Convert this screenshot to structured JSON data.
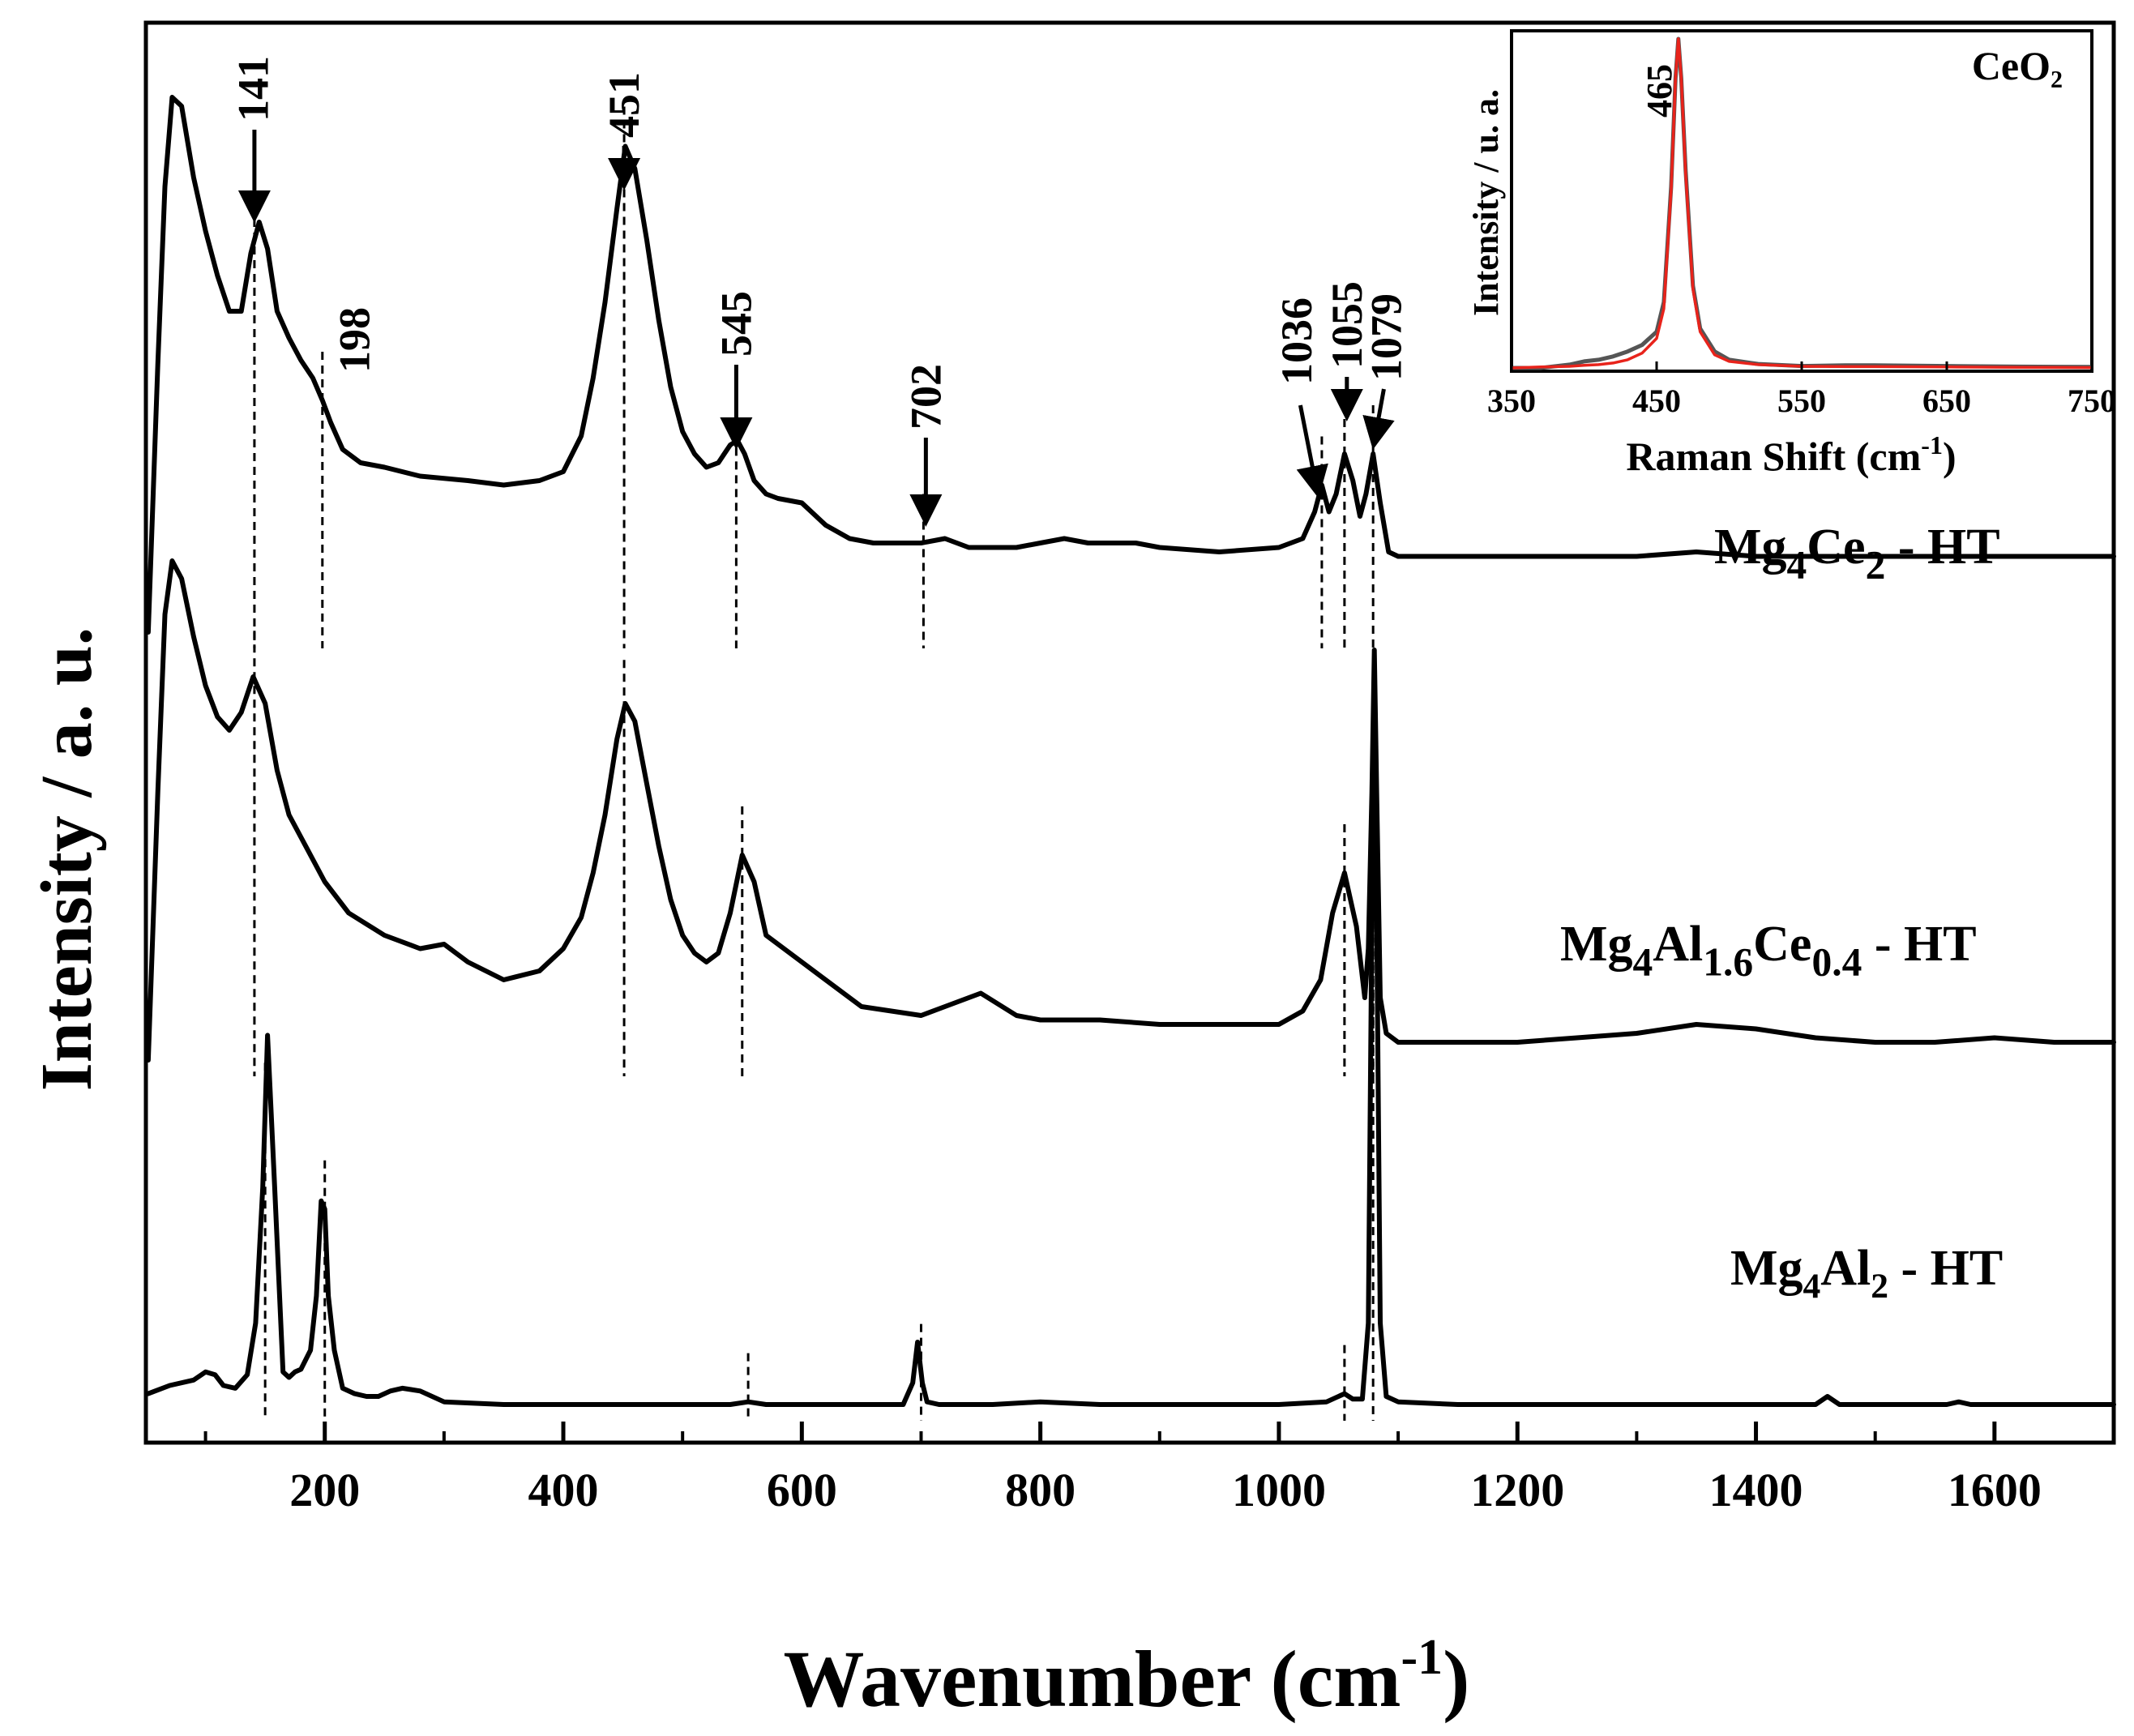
{
  "chart_data": {
    "type": "line",
    "title": "",
    "xlabel": "Wavenumber (cm",
    "xlabel_sup": "-1",
    "xlabel_close": ")",
    "ylabel": "Intensity / a. u.",
    "xlim": [
      50,
      1700
    ],
    "x_ticks": [
      200,
      400,
      600,
      800,
      1000,
      1200,
      1400,
      1600
    ],
    "x_tick_labels": [
      "200",
      "400",
      "600",
      "800",
      "1000",
      "1200",
      "1400",
      "1600"
    ],
    "y_ticks": false,
    "line_color": "#000000",
    "series": [
      {
        "name": "Mg4Ce2 - HT",
        "label_parts": [
          {
            "text": "Mg",
            "sub": false
          },
          {
            "text": "4",
            "sub": true
          },
          {
            "text": "Ce",
            "sub": false
          },
          {
            "text": "2",
            "sub": true
          },
          {
            "text": " - HT",
            "sub": false
          }
        ],
        "x": [
          52,
          60,
          66,
          72,
          80,
          90,
          100,
          110,
          120,
          130,
          138,
          145,
          152,
          160,
          170,
          180,
          190,
          198,
          205,
          215,
          230,
          250,
          280,
          320,
          350,
          380,
          400,
          415,
          425,
          435,
          445,
          452,
          460,
          470,
          480,
          490,
          500,
          510,
          520,
          530,
          540,
          546,
          552,
          560,
          570,
          580,
          600,
          620,
          640,
          660,
          680,
          700,
          720,
          740,
          760,
          780,
          800,
          820,
          840,
          860,
          880,
          900,
          950,
          1000,
          1020,
          1030,
          1036,
          1042,
          1048,
          1055,
          1062,
          1068,
          1073,
          1079,
          1085,
          1092,
          1100,
          1150,
          1200,
          1250,
          1300,
          1350,
          1400,
          1450,
          1500,
          1550,
          1600,
          1650,
          1700
        ],
        "y": [
          0,
          60,
          100,
          120,
          118,
          102,
          90,
          80,
          72,
          72,
          85,
          92,
          86,
          72,
          66,
          61,
          57,
          52,
          47,
          41,
          38,
          37,
          35,
          34,
          33,
          34,
          36,
          44,
          57,
          74,
          95,
          109,
          104,
          88,
          70,
          55,
          45,
          40,
          37,
          38,
          42,
          43,
          40,
          34,
          31,
          30,
          29,
          24,
          21,
          20,
          20,
          20,
          21,
          19,
          19,
          19,
          20,
          21,
          20,
          20,
          20,
          19,
          18,
          19,
          21,
          27,
          33,
          27,
          31,
          40,
          34,
          26,
          31,
          40,
          29,
          18,
          17,
          17,
          17,
          17,
          17,
          18,
          17,
          17,
          17,
          17,
          17,
          17,
          17
        ],
        "annotations": [
          {
            "x": 141,
            "label": "141",
            "arrow": true
          },
          {
            "x": 198,
            "label": "198",
            "arrow": false
          },
          {
            "x": 451,
            "label": "451",
            "arrow": true
          },
          {
            "x": 545,
            "label": "545",
            "arrow": true
          },
          {
            "x": 702,
            "label": "702",
            "arrow": true
          },
          {
            "x": 1036,
            "label": "1036",
            "arrow": true
          },
          {
            "x": 1055,
            "label": "1055",
            "arrow": true
          },
          {
            "x": 1079,
            "label": "1079",
            "arrow": true
          }
        ],
        "dashed_markers": [
          141,
          198,
          451,
          545,
          702,
          1036,
          1055,
          1079
        ]
      },
      {
        "name": "Mg4Al1.6Ce0.4 - HT",
        "label_parts": [
          {
            "text": "Mg",
            "sub": false
          },
          {
            "text": "4",
            "sub": true
          },
          {
            "text": "Al",
            "sub": false
          },
          {
            "text": "1.6",
            "sub": true
          },
          {
            "text": "Ce",
            "sub": false
          },
          {
            "text": "0.4",
            "sub": true
          },
          {
            "text": " - HT",
            "sub": false
          }
        ],
        "x": [
          52,
          60,
          66,
          72,
          80,
          90,
          100,
          110,
          120,
          130,
          140,
          150,
          160,
          170,
          180,
          190,
          200,
          220,
          250,
          280,
          300,
          320,
          350,
          380,
          400,
          415,
          425,
          435,
          445,
          452,
          460,
          470,
          480,
          490,
          500,
          510,
          520,
          530,
          540,
          550,
          560,
          570,
          600,
          650,
          700,
          720,
          750,
          780,
          800,
          850,
          900,
          950,
          1000,
          1020,
          1035,
          1045,
          1055,
          1065,
          1072,
          1075,
          1078,
          1080,
          1082,
          1085,
          1090,
          1100,
          1150,
          1200,
          1250,
          1300,
          1350,
          1400,
          1450,
          1500,
          1550,
          1600,
          1650,
          1700
        ],
        "y": [
          0,
          60,
          100,
          112,
          108,
          95,
          84,
          77,
          74,
          78,
          86,
          80,
          65,
          55,
          50,
          45,
          40,
          33,
          28,
          25,
          26,
          22,
          18,
          20,
          25,
          32,
          42,
          55,
          72,
          80,
          76,
          62,
          48,
          36,
          28,
          24,
          22,
          24,
          33,
          46,
          40,
          28,
          22,
          12,
          10,
          12,
          15,
          10,
          9,
          9,
          8,
          8,
          8,
          11,
          18,
          33,
          42,
          30,
          14,
          25,
          60,
          92,
          60,
          14,
          6,
          4,
          4,
          4,
          5,
          6,
          8,
          7,
          5,
          4,
          4,
          5,
          4,
          4
        ],
        "annotations": [],
        "dashed_markers": [
          141,
          451,
          550,
          1055,
          1079
        ]
      },
      {
        "name": "Mg4Al2 - HT",
        "label_parts": [
          {
            "text": "Mg",
            "sub": false
          },
          {
            "text": "4",
            "sub": true
          },
          {
            "text": "Al",
            "sub": false
          },
          {
            "text": "2",
            "sub": true
          },
          {
            "text": " - HT",
            "sub": false
          }
        ],
        "x": [
          52,
          70,
          90,
          100,
          108,
          115,
          125,
          135,
          142,
          148,
          152,
          158,
          165,
          170,
          175,
          180,
          188,
          193,
          197,
          200,
          203,
          208,
          215,
          225,
          235,
          245,
          255,
          265,
          280,
          300,
          350,
          400,
          450,
          500,
          540,
          555,
          570,
          600,
          650,
          685,
          693,
          697,
          701,
          705,
          715,
          760,
          800,
          850,
          900,
          1000,
          1040,
          1055,
          1062,
          1070,
          1075,
          1078,
          1080,
          1082,
          1085,
          1090,
          1100,
          1150,
          1200,
          1300,
          1400,
          1450,
          1460,
          1470,
          1500,
          1560,
          1570,
          1580,
          1650,
          1700
        ],
        "y": [
          4,
          7,
          9,
          12,
          11,
          7,
          6,
          11,
          30,
          80,
          136,
          80,
          12,
          10,
          12,
          13,
          20,
          40,
          75,
          72,
          40,
          20,
          6,
          4,
          3,
          3,
          5,
          6,
          5,
          1,
          0,
          0,
          0,
          0,
          0,
          1,
          0,
          0,
          0,
          0,
          8,
          23,
          8,
          1,
          0,
          0,
          1,
          0,
          0,
          0,
          1,
          4,
          2,
          2,
          30,
          180,
          260,
          180,
          30,
          3,
          1,
          0,
          0,
          0,
          0,
          0,
          3,
          0,
          0,
          0,
          1,
          0,
          0,
          0
        ],
        "annotations": [],
        "dashed_markers": [
          150,
          200,
          555,
          700,
          1055,
          1079
        ]
      }
    ],
    "inset": {
      "type": "line",
      "xlabel": "Raman Shift (cm",
      "xlabel_sup": "-1",
      "xlabel_close": ")",
      "ylabel": "Intensity / u. a.",
      "xlim": [
        350,
        750
      ],
      "x_ticks": [
        350,
        450,
        550,
        650,
        750
      ],
      "x_tick_labels": [
        "350",
        "450",
        "550",
        "650",
        "750"
      ],
      "legend": "CeO₂",
      "peak_label": "465",
      "peak_x": 465,
      "series": [
        {
          "name": "CeO2 measured",
          "color": "#555555",
          "x": [
            350,
            370,
            390,
            400,
            410,
            420,
            430,
            440,
            450,
            455,
            460,
            463,
            465,
            467,
            470,
            475,
            480,
            490,
            500,
            520,
            550,
            580,
            600,
            650,
            700,
            750
          ],
          "y": [
            0,
            0,
            1,
            2,
            2.5,
            3.5,
            5,
            7,
            11,
            20,
            55,
            88,
            100,
            88,
            60,
            25,
            12,
            5,
            2.5,
            1.2,
            0.6,
            0.8,
            0.8,
            0.6,
            0.4,
            0.3
          ]
        },
        {
          "name": "CeO2 fit",
          "color": "#e8231b",
          "x": [
            350,
            370,
            390,
            400,
            410,
            420,
            430,
            440,
            450,
            455,
            460,
            463,
            465,
            467,
            470,
            475,
            480,
            490,
            500,
            520,
            550,
            580,
            600,
            650,
            700,
            750
          ],
          "y": [
            0,
            0.3,
            0.5,
            0.8,
            1,
            1.5,
            2.5,
            4.5,
            9,
            18,
            54,
            88,
            100,
            88,
            59,
            24,
            11,
            4,
            2,
            1,
            0.5,
            0.4,
            0.4,
            0.3,
            0.2,
            0.1
          ]
        }
      ]
    }
  }
}
